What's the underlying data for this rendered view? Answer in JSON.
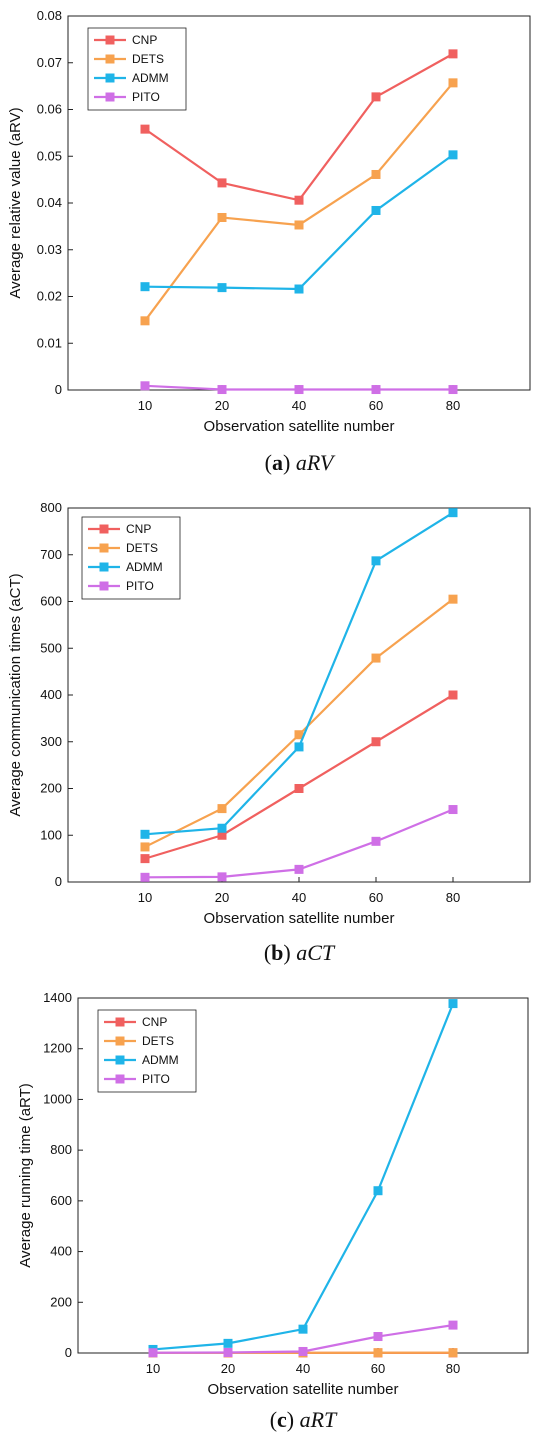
{
  "chart_data": [
    {
      "type": "line",
      "caption": {
        "letter": "a",
        "text": "aRV"
      },
      "xlabel": "Observation satellite number",
      "ylabel": "Average relative value (aRV)",
      "categories": [
        "10",
        "20",
        "40",
        "60",
        "80"
      ],
      "ylim": [
        0,
        0.08
      ],
      "yticks": [
        "0",
        "0.01",
        "0.02",
        "0.03",
        "0.04",
        "0.05",
        "0.06",
        "0.07",
        "0.08"
      ],
      "legend_position": "top-left",
      "series": [
        {
          "name": "CNP",
          "color": "#f0605f",
          "values": [
            0.0558,
            0.0443,
            0.0406,
            0.0627,
            0.0719
          ]
        },
        {
          "name": "DETS",
          "color": "#f7a24f",
          "values": [
            0.0148,
            0.0369,
            0.0353,
            0.0461,
            0.0657
          ]
        },
        {
          "name": "ADMM",
          "color": "#1fb4e8",
          "values": [
            0.0221,
            0.0219,
            0.0216,
            0.0384,
            0.0503
          ]
        },
        {
          "name": "PITO",
          "color": "#cf6fe6",
          "values": [
            0.0009,
            0.0001,
            0.0001,
            0.0001,
            0.0001
          ]
        }
      ]
    },
    {
      "type": "line",
      "caption": {
        "letter": "b",
        "text": "aCT"
      },
      "xlabel": "Observation satellite number",
      "ylabel": "Average communication times (aCT)",
      "categories": [
        "10",
        "20",
        "40",
        "60",
        "80"
      ],
      "ylim": [
        0,
        800
      ],
      "yticks": [
        "0",
        "100",
        "200",
        "300",
        "400",
        "500",
        "600",
        "700",
        "800"
      ],
      "legend_position": "top-left",
      "series": [
        {
          "name": "CNP",
          "color": "#f0605f",
          "values": [
            50,
            100,
            200,
            300,
            400
          ]
        },
        {
          "name": "DETS",
          "color": "#f7a24f",
          "values": [
            75,
            157,
            315,
            479,
            605
          ]
        },
        {
          "name": "ADMM",
          "color": "#1fb4e8",
          "values": [
            102,
            115,
            289,
            687,
            790
          ]
        },
        {
          "name": "PITO",
          "color": "#cf6fe6",
          "values": [
            10,
            11,
            27,
            87,
            155
          ]
        }
      ]
    },
    {
      "type": "line",
      "caption": {
        "letter": "c",
        "text": "aRT"
      },
      "xlabel": "Observation satellite number",
      "ylabel": "Average running time (aRT)",
      "categories": [
        "10",
        "20",
        "40",
        "60",
        "80"
      ],
      "ylim": [
        0,
        1400
      ],
      "yticks": [
        "0",
        "200",
        "400",
        "600",
        "800",
        "1000",
        "1200",
        "1400"
      ],
      "legend_position": "top-left",
      "series": [
        {
          "name": "CNP",
          "color": "#f0605f",
          "values": [
            0.3,
            0.3,
            0.5,
            0.6,
            0.6
          ]
        },
        {
          "name": "DETS",
          "color": "#f7a24f",
          "values": [
            0.4,
            0.5,
            0.8,
            1.0,
            1.2
          ]
        },
        {
          "name": "ADMM",
          "color": "#1fb4e8",
          "values": [
            14,
            38,
            94,
            640,
            1378
          ]
        },
        {
          "name": "PITO",
          "color": "#cf6fe6",
          "values": [
            1,
            2,
            6,
            65,
            110
          ]
        }
      ]
    }
  ]
}
